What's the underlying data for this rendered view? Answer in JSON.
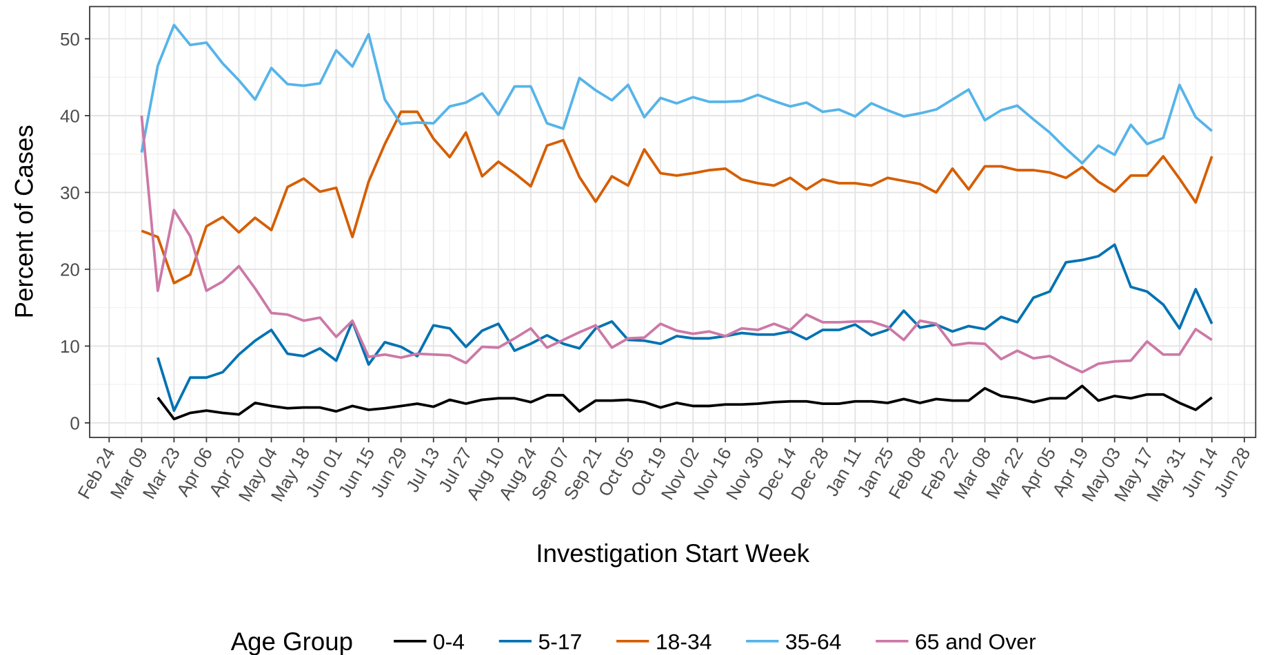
{
  "chart_data": {
    "type": "line",
    "xlabel": "Investigation Start Week",
    "ylabel": "Percent of Cases",
    "legend_title": "Age Group",
    "legend": "bottom",
    "grid": true,
    "xlim": [
      -1.2,
      70.7
    ],
    "ylim": [
      -1.9,
      54.2
    ],
    "yticks": [
      0,
      10,
      20,
      30,
      40,
      50
    ],
    "xticks": [
      {
        "value": 0,
        "label": "Feb 24"
      },
      {
        "value": 2,
        "label": "Mar 09"
      },
      {
        "value": 4,
        "label": "Mar 23"
      },
      {
        "value": 6,
        "label": "Apr 06"
      },
      {
        "value": 8,
        "label": "Apr 20"
      },
      {
        "value": 10,
        "label": "May 04"
      },
      {
        "value": 12,
        "label": "May 18"
      },
      {
        "value": 14,
        "label": "Jun 01"
      },
      {
        "value": 16,
        "label": "Jun 15"
      },
      {
        "value": 18,
        "label": "Jun 29"
      },
      {
        "value": 20,
        "label": "Jul 13"
      },
      {
        "value": 22,
        "label": "Jul 27"
      },
      {
        "value": 24,
        "label": "Aug 10"
      },
      {
        "value": 26,
        "label": "Aug 24"
      },
      {
        "value": 28,
        "label": "Sep 07"
      },
      {
        "value": 30,
        "label": "Sep 21"
      },
      {
        "value": 32,
        "label": "Oct 05"
      },
      {
        "value": 34,
        "label": "Oct 19"
      },
      {
        "value": 36,
        "label": "Nov 02"
      },
      {
        "value": 38,
        "label": "Nov 16"
      },
      {
        "value": 40,
        "label": "Nov 30"
      },
      {
        "value": 42,
        "label": "Dec 14"
      },
      {
        "value": 44,
        "label": "Dec 28"
      },
      {
        "value": 46,
        "label": "Jan 11"
      },
      {
        "value": 48,
        "label": "Jan 25"
      },
      {
        "value": 50,
        "label": "Feb 08"
      },
      {
        "value": 52,
        "label": "Feb 22"
      },
      {
        "value": 54,
        "label": "Mar 08"
      },
      {
        "value": 56,
        "label": "Mar 22"
      },
      {
        "value": 58,
        "label": "Apr 05"
      },
      {
        "value": 60,
        "label": "Apr 19"
      },
      {
        "value": 62,
        "label": "May 03"
      },
      {
        "value": 64,
        "label": "May 17"
      },
      {
        "value": 66,
        "label": "May 31"
      },
      {
        "value": 68,
        "label": "Jun 14"
      },
      {
        "value": 70,
        "label": "Jun 28"
      }
    ],
    "x": [
      2,
      3,
      4,
      5,
      6,
      7,
      8,
      9,
      10,
      11,
      12,
      13,
      14,
      15,
      16,
      17,
      18,
      19,
      20,
      21,
      22,
      23,
      24,
      25,
      26,
      27,
      28,
      29,
      30,
      31,
      32,
      33,
      34,
      35,
      36,
      37,
      38,
      39,
      40,
      41,
      42,
      43,
      44,
      45,
      46,
      47,
      48,
      49,
      50,
      51,
      52,
      53,
      54,
      55,
      56,
      57,
      58,
      59,
      60,
      61,
      62,
      63,
      64,
      65,
      66,
      67,
      68
    ],
    "series": [
      {
        "name": "0-4",
        "color": "#000000",
        "values": [
          null,
          3.3,
          0.5,
          1.3,
          1.6,
          1.3,
          1.1,
          2.6,
          2.2,
          1.9,
          2.0,
          2.0,
          1.5,
          2.2,
          1.7,
          1.9,
          2.2,
          2.5,
          2.1,
          3.0,
          2.5,
          3.0,
          3.2,
          3.2,
          2.7,
          3.6,
          3.6,
          1.5,
          2.9,
          2.9,
          3.0,
          2.7,
          2.0,
          2.6,
          2.2,
          2.2,
          2.4,
          2.4,
          2.5,
          2.7,
          2.8,
          2.8,
          2.5,
          2.5,
          2.8,
          2.8,
          2.6,
          3.1,
          2.6,
          3.1,
          2.9,
          2.9,
          4.5,
          3.5,
          3.2,
          2.7,
          3.2,
          3.2,
          4.8,
          2.9,
          3.5,
          3.2,
          3.7,
          3.7,
          2.6,
          1.7,
          3.3
        ]
      },
      {
        "name": "5-17",
        "color": "#0072B2",
        "values": [
          null,
          8.5,
          1.6,
          5.9,
          5.9,
          6.6,
          8.9,
          10.7,
          12.1,
          9.0,
          8.7,
          9.7,
          8.1,
          13.2,
          7.6,
          10.5,
          9.9,
          8.7,
          12.7,
          12.3,
          9.9,
          12.0,
          12.9,
          9.4,
          10.3,
          11.4,
          10.3,
          9.7,
          12.3,
          13.2,
          10.8,
          10.7,
          10.3,
          11.3,
          11.0,
          11.0,
          11.3,
          11.7,
          11.5,
          11.5,
          11.9,
          10.9,
          12.1,
          12.1,
          12.8,
          11.4,
          12.1,
          14.6,
          12.4,
          12.8,
          11.9,
          12.6,
          12.2,
          13.8,
          13.1,
          16.3,
          17.1,
          20.9,
          21.2,
          21.7,
          23.2,
          17.7,
          17.1,
          15.4,
          12.3,
          17.4,
          12.9
        ]
      },
      {
        "name": "18-34",
        "color": "#D55E00",
        "values": [
          25.0,
          24.2,
          18.2,
          19.3,
          25.6,
          26.8,
          24.8,
          26.7,
          25.1,
          30.7,
          31.8,
          30.1,
          30.6,
          24.2,
          31.4,
          36.3,
          40.5,
          40.5,
          37.0,
          34.6,
          37.8,
          32.1,
          34.0,
          32.5,
          30.8,
          36.1,
          36.8,
          32.0,
          28.8,
          32.1,
          30.9,
          35.6,
          32.5,
          32.2,
          32.5,
          32.9,
          33.1,
          31.7,
          31.2,
          30.9,
          31.9,
          30.4,
          31.7,
          31.2,
          31.2,
          30.9,
          31.9,
          31.5,
          31.1,
          30.0,
          33.1,
          30.4,
          33.4,
          33.4,
          32.9,
          32.9,
          32.6,
          31.9,
          33.3,
          31.4,
          30.1,
          32.2,
          32.2,
          34.7,
          31.8,
          28.7,
          34.7
        ]
      },
      {
        "name": "35-64",
        "color": "#56B4E9",
        "values": [
          35.2,
          46.5,
          51.8,
          49.2,
          49.5,
          46.8,
          44.6,
          42.1,
          46.2,
          44.1,
          43.9,
          44.2,
          48.5,
          46.4,
          50.6,
          42.1,
          38.9,
          39.1,
          39.0,
          41.2,
          41.7,
          42.9,
          40.1,
          43.8,
          43.8,
          39.0,
          38.3,
          44.9,
          43.3,
          42.0,
          44.0,
          39.8,
          42.3,
          41.6,
          42.4,
          41.8,
          41.8,
          41.9,
          42.7,
          41.9,
          41.2,
          41.7,
          40.5,
          40.8,
          39.9,
          41.6,
          40.7,
          39.9,
          40.3,
          40.8,
          42.1,
          43.4,
          39.4,
          40.7,
          41.3,
          39.5,
          37.8,
          35.7,
          33.8,
          36.1,
          34.9,
          38.8,
          36.3,
          37.1,
          44.0,
          39.8,
          38.0
        ]
      },
      {
        "name": "65 and Over",
        "color": "#CC79A7",
        "values": [
          40.0,
          17.2,
          27.7,
          24.3,
          17.2,
          18.4,
          20.4,
          17.5,
          14.3,
          14.1,
          13.3,
          13.7,
          11.2,
          13.3,
          8.6,
          8.9,
          8.5,
          9.0,
          8.9,
          8.8,
          7.8,
          9.9,
          9.8,
          11.0,
          12.3,
          9.8,
          10.8,
          11.8,
          12.7,
          9.8,
          11.0,
          11.1,
          12.9,
          12.0,
          11.6,
          11.9,
          11.3,
          12.3,
          12.1,
          12.9,
          12.1,
          14.1,
          13.1,
          13.1,
          13.2,
          13.2,
          12.5,
          10.8,
          13.3,
          12.9,
          10.1,
          10.4,
          10.3,
          8.3,
          9.4,
          8.4,
          8.7,
          7.6,
          6.6,
          7.7,
          8.0,
          8.1,
          10.6,
          8.9,
          8.9,
          12.2,
          10.8
        ]
      }
    ]
  }
}
